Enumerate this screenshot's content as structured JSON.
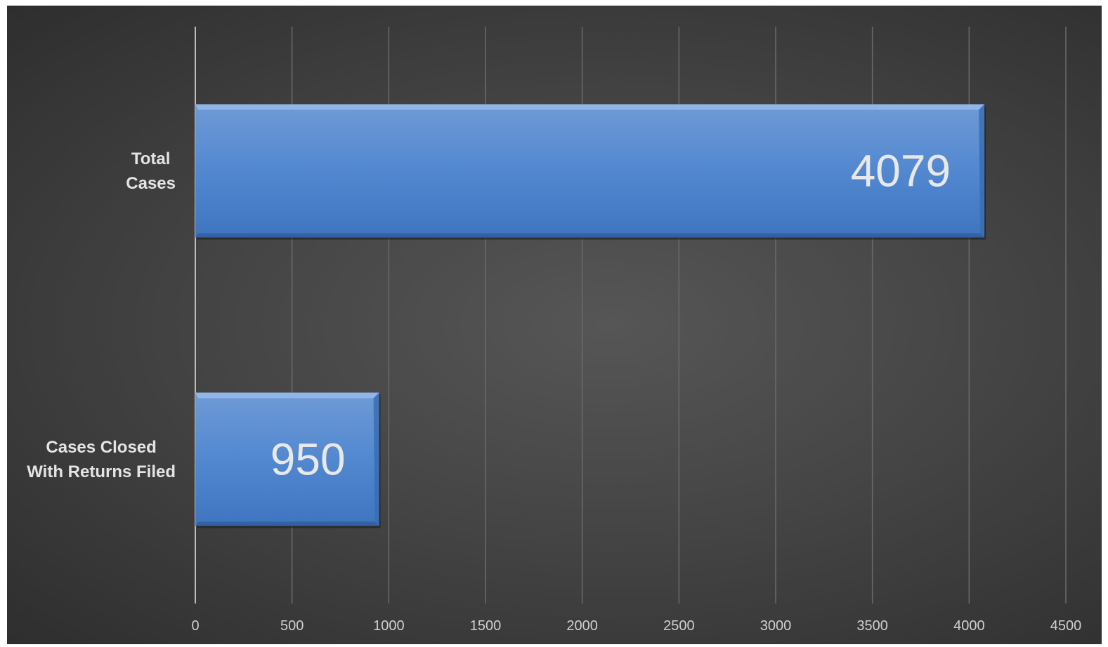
{
  "chart_data": {
    "type": "bar",
    "orientation": "horizontal",
    "categories": [
      "Total Cases",
      "Cases Closed With Returns Filed"
    ],
    "category_label_lines": [
      [
        "Total",
        "Cases"
      ],
      [
        "Cases Closed",
        "With Returns Filed"
      ]
    ],
    "values": [
      4079,
      950
    ],
    "data_labels": [
      "4079",
      "950"
    ],
    "x_ticks": [
      0,
      500,
      1000,
      1500,
      2000,
      2500,
      3000,
      3500,
      4000,
      4500
    ],
    "xlim": [
      0,
      4500
    ],
    "grid": true,
    "legend": "none",
    "title": "",
    "xlabel": "",
    "ylabel": "",
    "colors": {
      "bar": "#4f86cf",
      "background": "#4a4a4a",
      "gridline": "#6a6a6a",
      "text": "#e0e0e0"
    }
  }
}
